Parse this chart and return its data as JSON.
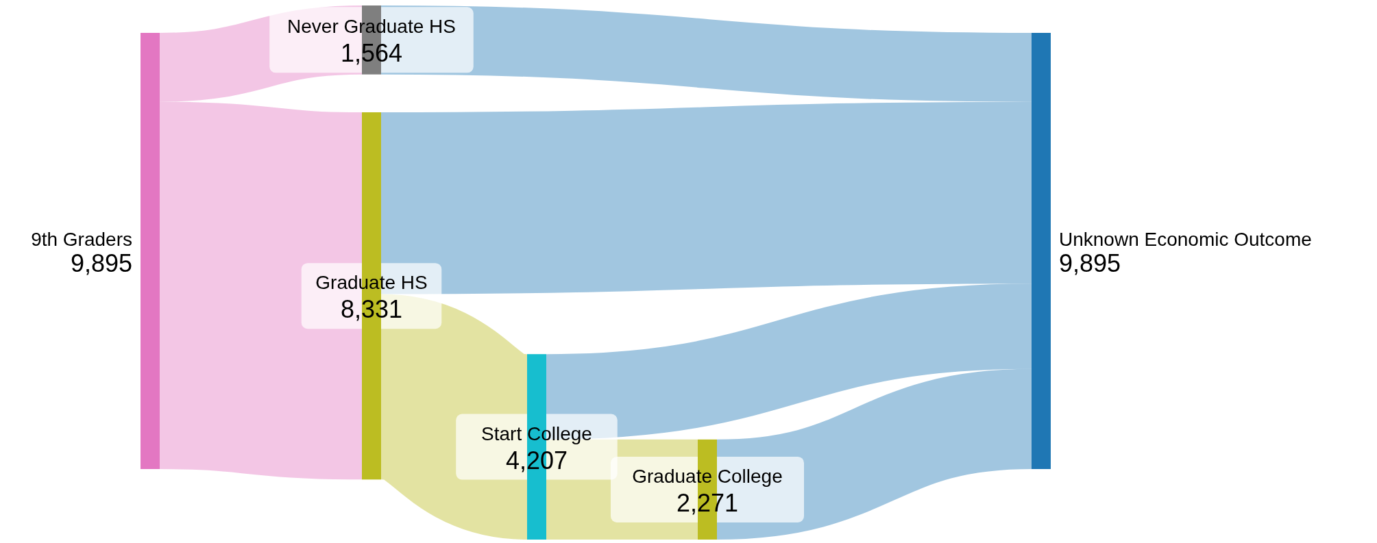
{
  "chart_data": {
    "type": "other",
    "categories": [
      "9th Graders",
      "Never Graduate HS",
      "Graduate HS",
      "Start College",
      "Graduate College",
      "Unknown Economic Outcome"
    ],
    "values": [
      9895,
      1564,
      8331,
      4207,
      2271,
      9895
    ],
    "value_labels": [
      "9,895",
      "1,564",
      "8,331",
      "4,207",
      "2,271",
      "9,895"
    ],
    "colors": [
      "#e377c2",
      "#7f7f7f",
      "#bcbd22",
      "#17becf",
      "#bcbd22",
      "#1f77b4"
    ]
  }
}
